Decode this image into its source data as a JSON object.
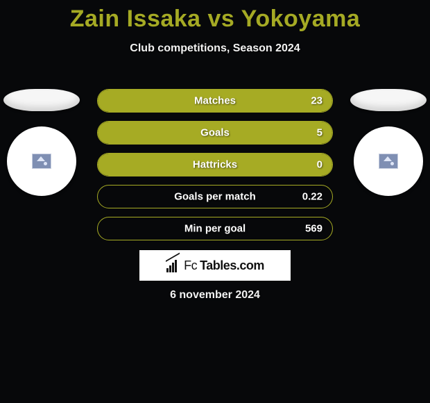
{
  "title": "Zain Issaka vs Yokoyama",
  "title_color": "#a5aa24",
  "subtitle": "Club competitions, Season 2024",
  "date": "6 november 2024",
  "background_color": "#07080a",
  "text_color_light": "#f2f2f2",
  "brand": {
    "prefix": "Fc",
    "suffix": "Tables.com"
  },
  "stats": {
    "row_background_outline": "#a6ab24",
    "row_fill_color": "#a6ab24",
    "label_color": "#ffffff",
    "value_color": "#ffffff",
    "rows": [
      {
        "label": "Matches",
        "value": "23",
        "fill_percent": 100
      },
      {
        "label": "Goals",
        "value": "5",
        "fill_percent": 100
      },
      {
        "label": "Hattricks",
        "value": "0",
        "fill_percent": 100
      },
      {
        "label": "Goals per match",
        "value": "0.22",
        "fill_percent": 0
      },
      {
        "label": "Min per goal",
        "value": "569",
        "fill_percent": 0
      }
    ]
  },
  "players": {
    "left": {
      "flag_color": "#f6f6f6",
      "avatar_bg": "#ffffff"
    },
    "right": {
      "flag_color": "#f6f6f6",
      "avatar_bg": "#ffffff"
    }
  }
}
